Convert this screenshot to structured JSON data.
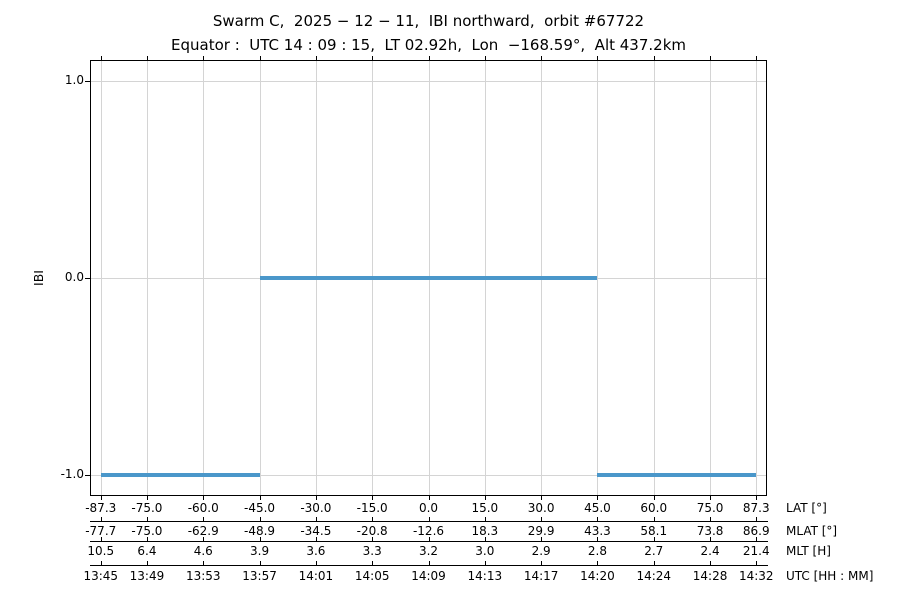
{
  "title": {
    "line1": "Swarm C,  2025 − 12 − 11,  IBI northward,  orbit #67722",
    "line2": "Equator :  UTC 14 : 09 : 15,  LT 02.92h,  Lon  −168.59°,  Alt 437.2km"
  },
  "chart_data": {
    "type": "line",
    "title": "Swarm C, 2025-12-11, IBI northward, orbit #67722",
    "subtitle": "Equator: UTC 14:09:15, LT 02.92h, Lon -168.59°, Alt 437.2km",
    "ylabel": "IBI",
    "ylim": [
      -1.1,
      1.1
    ],
    "ytick_values": [
      1.0,
      0.0,
      -1.0
    ],
    "ytick_labels": [
      "1.0",
      "0.0",
      "-1.0"
    ],
    "xlim_lat": [
      -89.9,
      89.9
    ],
    "grid": true,
    "legend_position": "none",
    "line_color": "#4a97ca",
    "grid_color": "#d4d4d4",
    "x_rows": [
      {
        "name": "LAT [°]",
        "labels": [
          "-87.3",
          "-75.0",
          "-60.0",
          "-45.0",
          "-30.0",
          "-15.0",
          "0.0",
          "15.0",
          "30.0",
          "45.0",
          "60.0",
          "75.0",
          "87.3"
        ]
      },
      {
        "name": "MLAT [°]",
        "labels": [
          "-77.7",
          "-75.0",
          "-62.9",
          "-48.9",
          "-34.5",
          "-20.8",
          "-12.6",
          "18.3",
          "29.9",
          "43.3",
          "58.1",
          "73.8",
          "86.9"
        ]
      },
      {
        "name": "MLT [H]",
        "labels": [
          "10.5",
          "6.4",
          "4.6",
          "3.9",
          "3.6",
          "3.3",
          "3.2",
          "3.0",
          "2.9",
          "2.8",
          "2.7",
          "2.4",
          "21.4"
        ]
      },
      {
        "name": "UTC [HH : MM]",
        "labels": [
          "13:45",
          "13:49",
          "13:53",
          "13:57",
          "14:01",
          "14:05",
          "14:09",
          "14:13",
          "14:17",
          "14:20",
          "14:24",
          "14:28",
          "14:32"
        ]
      }
    ],
    "segments": [
      {
        "ibi": -1.0,
        "lat_span": [
          -87.3,
          -45.0
        ],
        "utc_span": [
          "13:45",
          "13:57"
        ]
      },
      {
        "ibi": 0.0,
        "lat_span": [
          -45.0,
          45.0
        ],
        "utc_span": [
          "13:57",
          "14:20"
        ]
      },
      {
        "ibi": -1.0,
        "lat_span": [
          45.0,
          87.3
        ],
        "utc_span": [
          "14:20",
          "14:32"
        ]
      }
    ]
  }
}
